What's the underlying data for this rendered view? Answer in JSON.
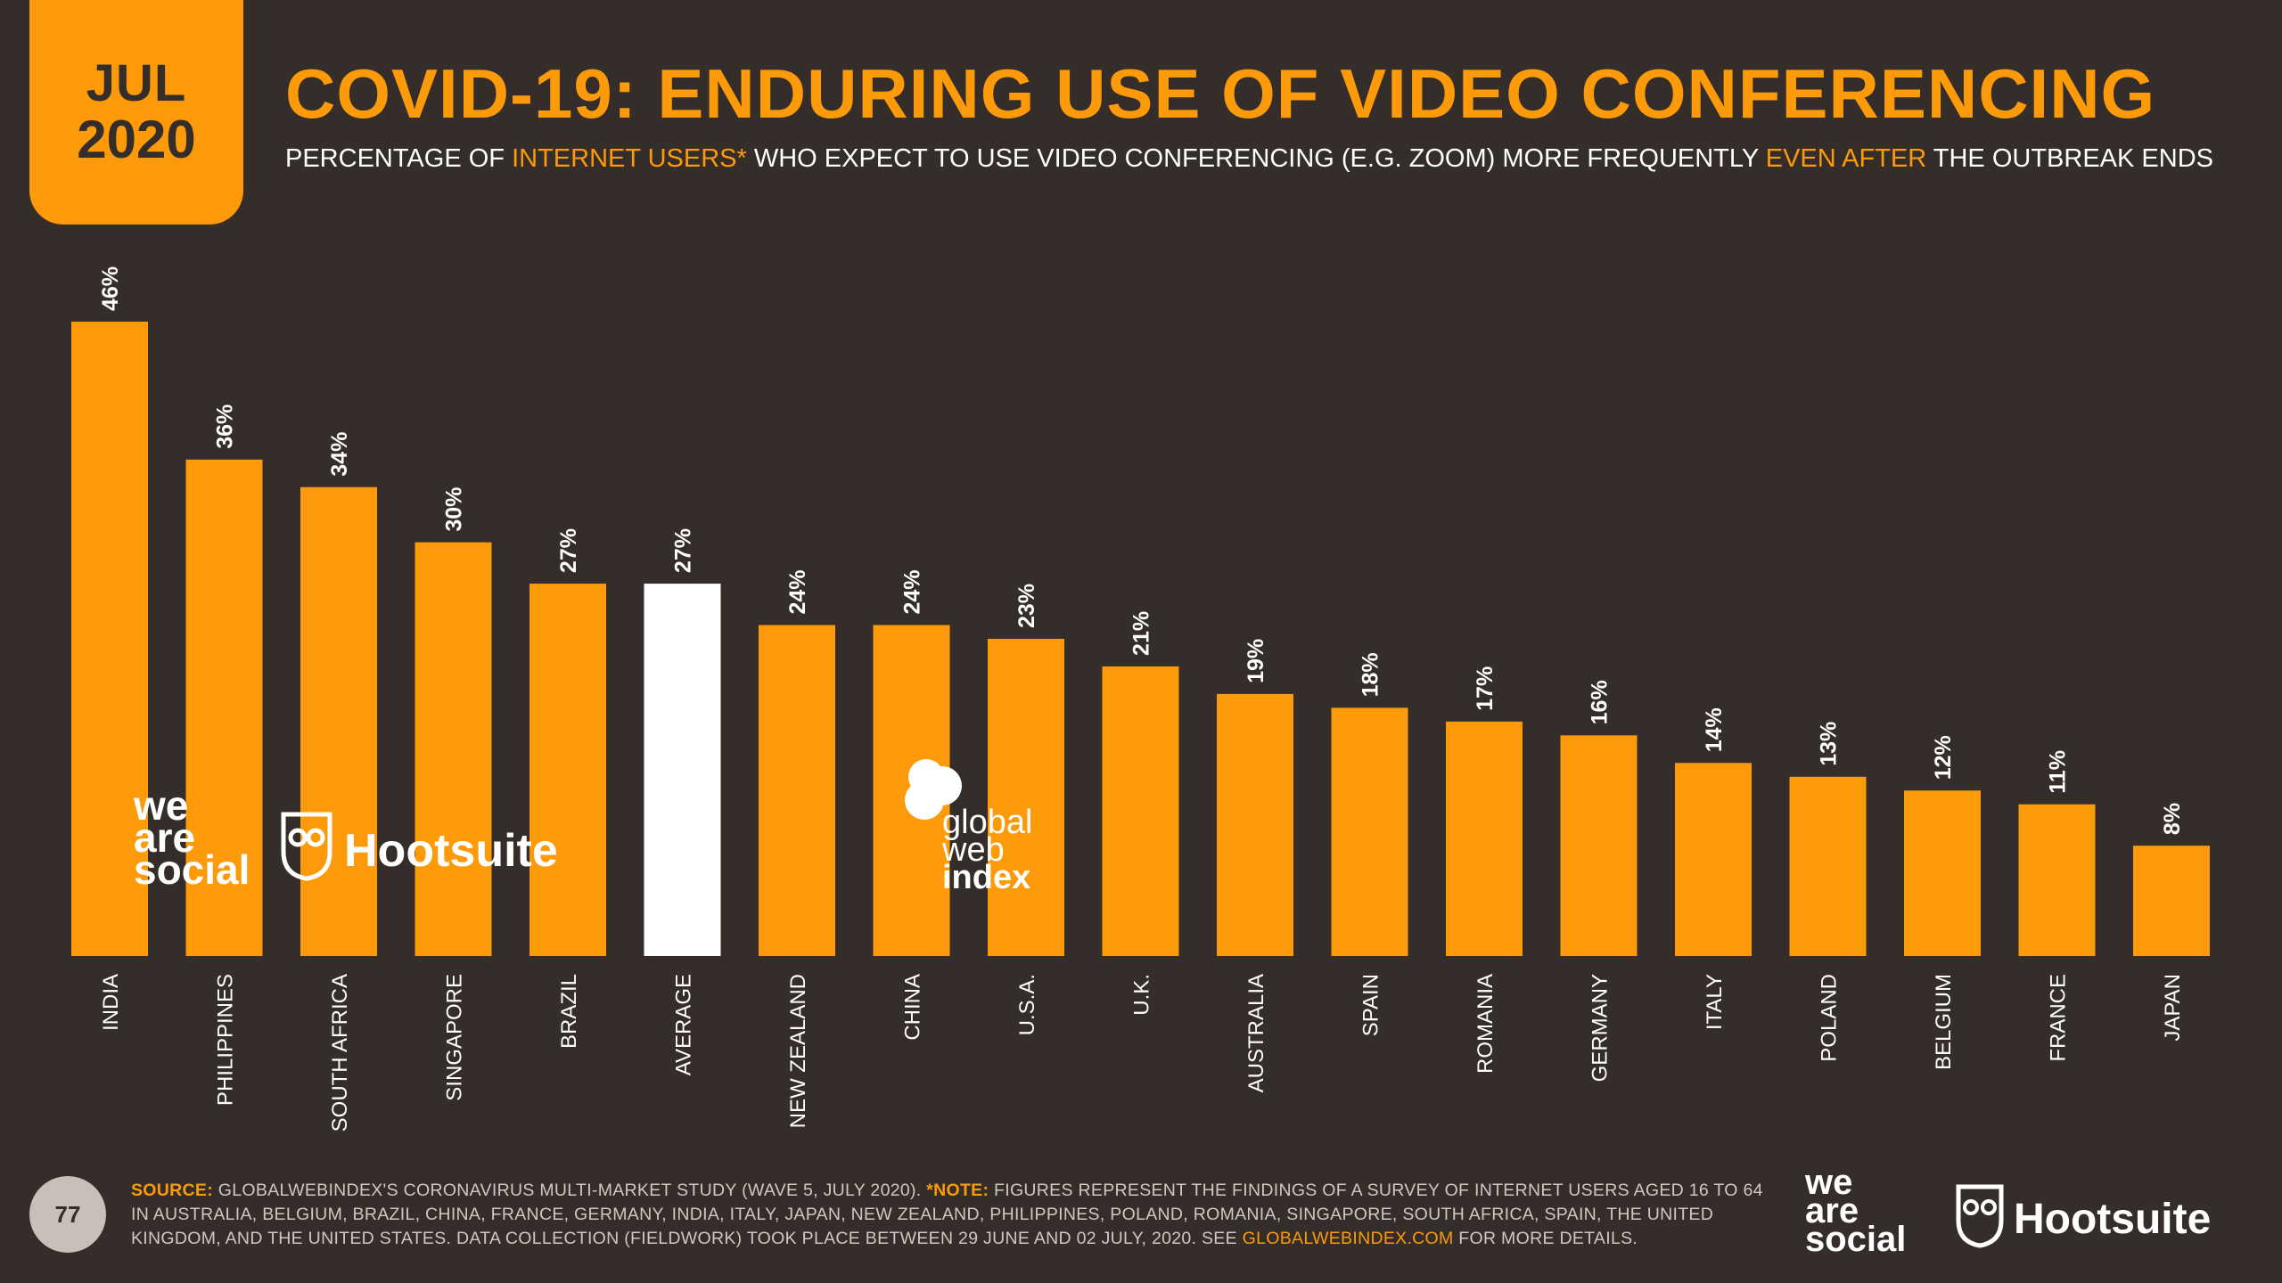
{
  "badge": {
    "month": "JUL",
    "year": "2020"
  },
  "title": "COVID-19: ENDURING USE OF VIDEO CONFERENCING",
  "subtitle": {
    "p1": "PERCENTAGE OF ",
    "h1": "INTERNET USERS*",
    "p2": " WHO EXPECT TO USE VIDEO CONFERENCING (E.G. ZOOM) MORE FREQUENTLY ",
    "h2": "EVEN AFTER",
    "p3": " THE OUTBREAK ENDS"
  },
  "colors": {
    "background": "#342d2a",
    "accent": "#fc9a0a",
    "highlight": "#ffffff"
  },
  "chart_data": {
    "type": "bar",
    "categories": [
      "INDIA",
      "PHILIPPINES",
      "SOUTH AFRICA",
      "SINGAPORE",
      "BRAZIL",
      "AVERAGE",
      "NEW ZEALAND",
      "CHINA",
      "U.S.A.",
      "U.K.",
      "AUSTRALIA",
      "SPAIN",
      "ROMANIA",
      "GERMANY",
      "ITALY",
      "POLAND",
      "BELGIUM",
      "FRANCE",
      "JAPAN"
    ],
    "values": [
      46,
      36,
      34,
      30,
      27,
      27,
      24,
      24,
      23,
      21,
      19,
      18,
      17,
      16,
      14,
      13,
      12,
      11,
      8
    ],
    "labels": [
      "46%",
      "36%",
      "34%",
      "30%",
      "27%",
      "27%",
      "24%",
      "24%",
      "23%",
      "21%",
      "19%",
      "18%",
      "17%",
      "16%",
      "14%",
      "13%",
      "12%",
      "11%",
      "8%"
    ],
    "highlight_category": "AVERAGE",
    "ylim": [
      0,
      46
    ],
    "grid": false
  },
  "watermarks": {
    "was": [
      "we",
      "are",
      "social"
    ],
    "hootsuite": "Hootsuite",
    "gwi": [
      "global",
      "web",
      "index"
    ]
  },
  "footer": {
    "source_label": "SOURCE:",
    "source_text": " GLOBALWEBINDEX'S CORONAVIRUS MULTI-MARKET STUDY (WAVE 5, JULY 2020). ",
    "note_label": "*NOTE:",
    "note_text": " FIGURES REPRESENT THE FINDINGS OF A SURVEY OF INTERNET USERS AGED 16 TO 64 IN AUSTRALIA, BELGIUM, BRAZIL, CHINA, FRANCE, GERMANY, INDIA, ITALY, JAPAN, NEW ZEALAND, PHILIPPINES, POLAND, ROMANIA, SINGAPORE, SOUTH AFRICA, SPAIN, THE UNITED KINGDOM, AND THE UNITED STATES. DATA COLLECTION (FIELDWORK) TOOK PLACE BETWEEN 29 JUNE AND 02 JULY, 2020. SEE ",
    "link": "GLOBALWEBINDEX.COM",
    "tail": " FOR MORE DETAILS."
  },
  "page_number": "77"
}
